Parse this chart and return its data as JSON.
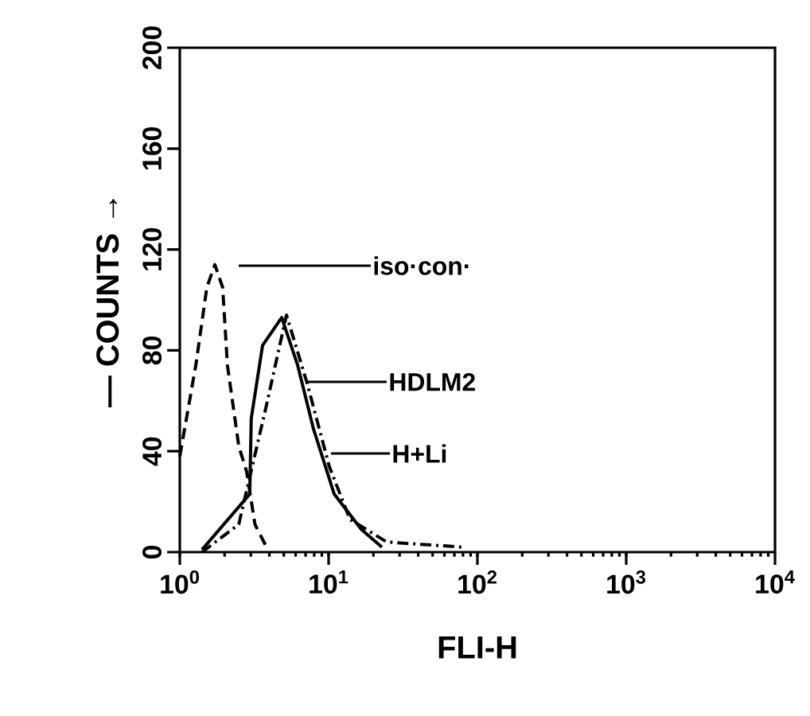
{
  "chart_data": {
    "type": "line",
    "xlabel": "FLI-H",
    "ylabel": "— COUNTS →",
    "log": "x",
    "xlim": [
      1,
      10000
    ],
    "ylim": [
      0,
      200
    ],
    "xticks": [
      {
        "value": 1,
        "label": "10$^{0}$"
      },
      {
        "value": 10,
        "label": "10$^{1}$"
      },
      {
        "value": 100,
        "label": "10$^{2}$"
      },
      {
        "value": 1000,
        "label": "10$^{3}$"
      },
      {
        "value": 10000,
        "label": "10$^{4}$"
      }
    ],
    "yticks": [
      0,
      40,
      80,
      120,
      160,
      200
    ],
    "grid": false,
    "marker": "none",
    "series": [
      {
        "color": "#000000",
        "line_style": "dashed",
        "x": [
          1,
          1.28,
          1.52,
          1.72,
          1.94,
          2.09,
          2.49,
          2.81,
          3.2,
          3.9
        ],
        "values": [
          38,
          74,
          105,
          114,
          105,
          74,
          42,
          32,
          11,
          1
        ]
      },
      {
        "color": "#000000",
        "line_style": "solid",
        "x": [
          1.41,
          2.95,
          3.02,
          3.6,
          4.84,
          6.2,
          7.9,
          10.9,
          16.6,
          22.8
        ],
        "values": [
          1,
          23,
          53,
          82,
          93,
          74,
          49,
          23,
          9,
          2
        ]
      },
      {
        "color": "#000000",
        "line_style": "dashdot",
        "x": [
          1.41,
          2.49,
          3.78,
          5.21,
          7.17,
          10.1,
          13.9,
          24.6,
          78
        ],
        "values": [
          0,
          11,
          57,
          94,
          67,
          34,
          13,
          4,
          2
        ]
      }
    ],
    "annotations": [
      "iso·con·",
      "HDLM2",
      "H+Li"
    ]
  }
}
